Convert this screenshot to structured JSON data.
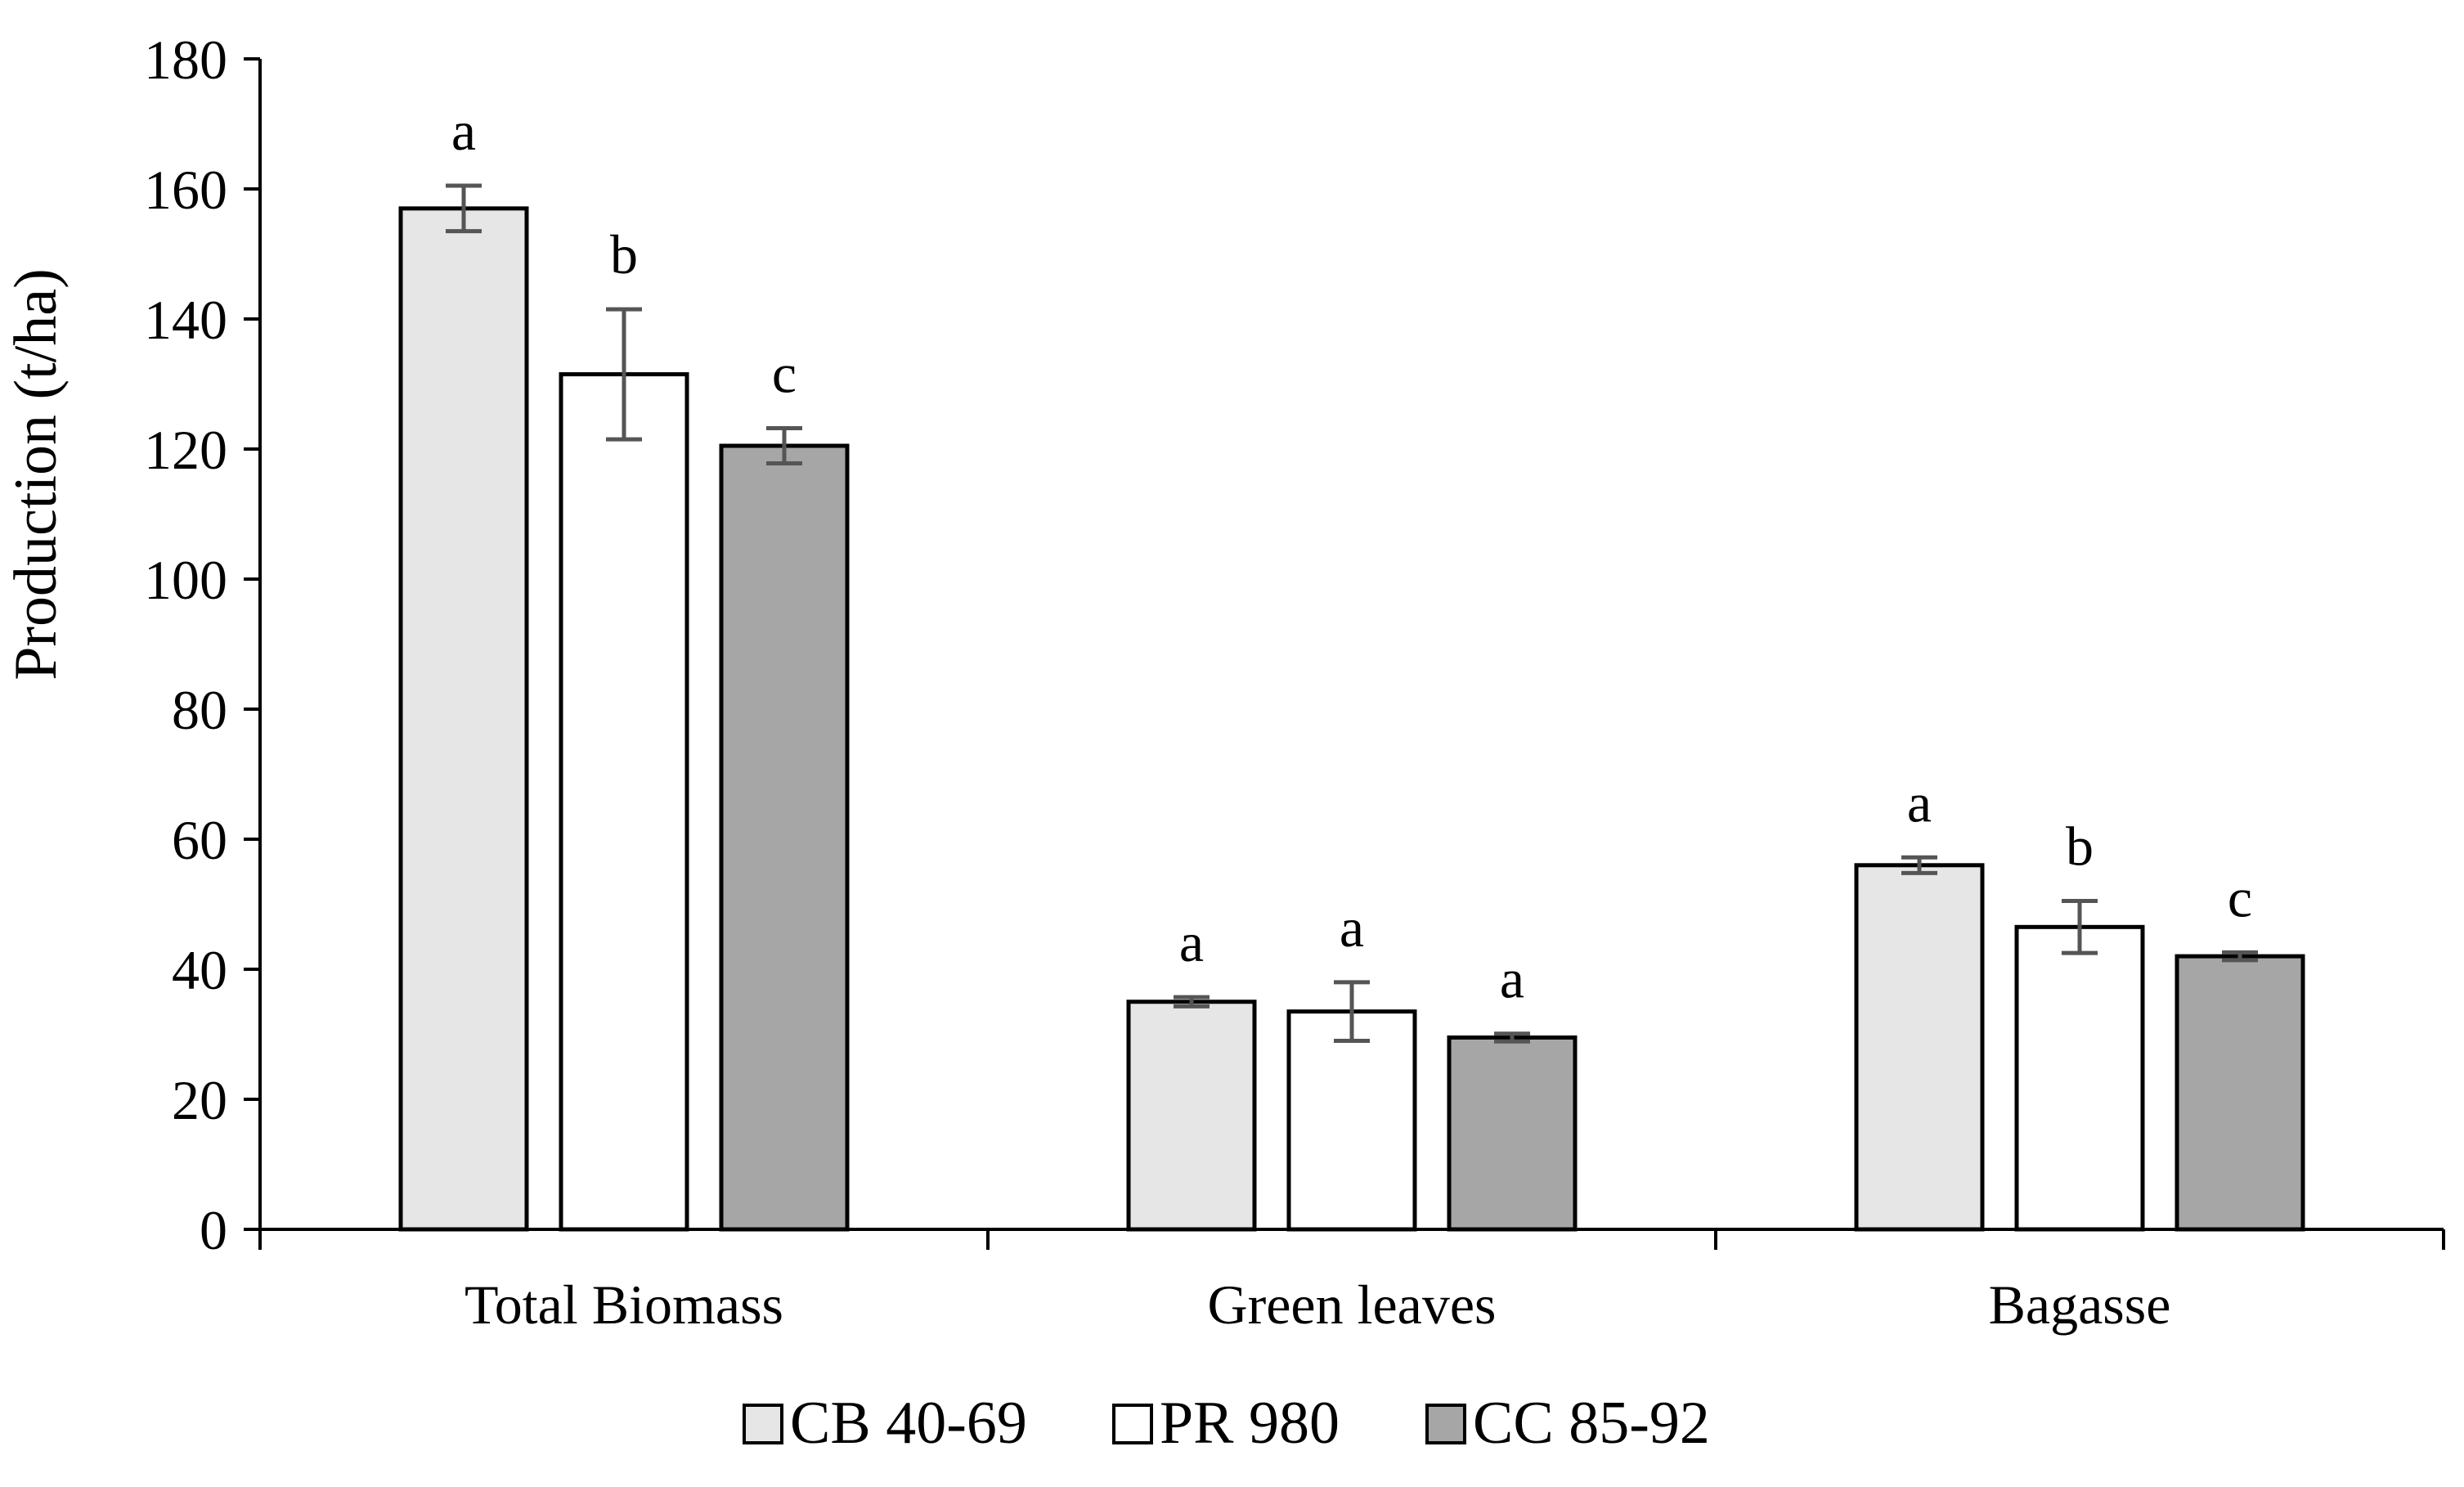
{
  "chart_data": {
    "type": "bar",
    "title": "",
    "xlabel": "",
    "ylabel": "Production (t/ha)",
    "ylim": [
      0,
      180
    ],
    "yticks": [
      0,
      20,
      40,
      60,
      80,
      100,
      120,
      140,
      160,
      180
    ],
    "grid": false,
    "legend_position": "bottom",
    "categories": [
      "Total Biomass",
      "Green leaves",
      "Bagasse"
    ],
    "series": [
      {
        "name": "CB 40-69",
        "color": "#e6e6e6",
        "values": [
          157,
          35,
          56
        ],
        "errors": [
          3.5,
          0.7,
          1.2
        ],
        "letters": [
          "a",
          "a",
          "a"
        ]
      },
      {
        "name": "PR 980",
        "color": "#ffffff",
        "values": [
          131.5,
          33.5,
          46.5
        ],
        "errors": [
          10,
          4.5,
          4
        ],
        "letters": [
          "b",
          "a",
          "b"
        ]
      },
      {
        "name": "CC 85-92",
        "color": "#a6a6a6",
        "values": [
          120.5,
          29.5,
          42
        ],
        "errors": [
          2.7,
          0.6,
          0.6
        ],
        "letters": [
          "c",
          "a",
          "c"
        ]
      }
    ]
  }
}
